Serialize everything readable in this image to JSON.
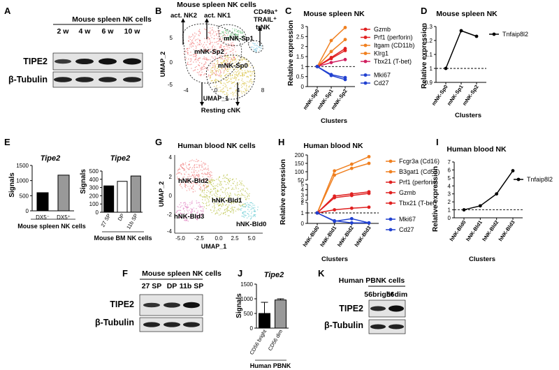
{
  "panels": {
    "A": {
      "letter": "A",
      "title": "Mouse spleen NK cells",
      "lanes": [
        "2 w",
        "4 w",
        "6 w",
        "10 w"
      ],
      "rows": [
        "TIPE2",
        "β-Tubulin"
      ]
    },
    "B": {
      "letter": "B",
      "title": "Mouse spleen NK cells",
      "xlabel": "UMAP_1",
      "ylabel": "UMAP_2",
      "xticks": [
        "-4",
        "0",
        "4",
        "8"
      ],
      "yticks": [
        "5",
        "0",
        "-5"
      ],
      "clusters": [
        "mNK-Sp0",
        "mNK-Sp1",
        "mNK-Sp2"
      ],
      "annotations": {
        "act2": "act. NK2",
        "act1": "act. NK1",
        "cd49a": "CD49a⁺",
        "trail": "TRAIL⁺",
        "trnk": "trNK",
        "resting": "Resting cNK"
      }
    },
    "E": {
      "letter": "E",
      "left_title": "Tipe2",
      "right_title": "Tipe2",
      "ylabel": "Signals",
      "left_caption": "Mouse spleen NK cells",
      "right_caption": "Mouse BM NK cells"
    },
    "F": {
      "letter": "F",
      "title": "Mouse spleen NK cells",
      "lanes": [
        "27 SP",
        "DP",
        "11b SP"
      ],
      "rows": [
        "TIPE2",
        "β-Tubulin"
      ]
    },
    "G": {
      "letter": "G",
      "title": "Human blood NK cells",
      "xlabel": "UMAP_1",
      "ylabel": "UMAP_2",
      "xticks": [
        "-5.0",
        "-2.5",
        "0.0",
        "2.5",
        "5.0"
      ],
      "yticks": [
        "4",
        "2",
        "0",
        "-2",
        "-4"
      ],
      "clusters": [
        "hNK-Bld2",
        "hNK-Bld1",
        "hNK-Bld3",
        "hNK-Bld0"
      ]
    },
    "J": {
      "letter": "J",
      "title": "Tipe2",
      "ylabel": "Signals",
      "caption": "Human PBNK"
    },
    "K": {
      "letter": "K",
      "title": "Human PBNK cells",
      "lanes": [
        "56bright",
        "56dim"
      ],
      "rows": [
        "TIPE2",
        "β-Tubulin"
      ]
    }
  },
  "chart_data": [
    {
      "id": "C",
      "letter": "C",
      "type": "line",
      "title": "Mouse spleen NK",
      "xlabel": "Clusters",
      "ylabel": "Relative expression",
      "categories": [
        "mNK-Sp0",
        "mNK-Sp1",
        "mNK-Sp2"
      ],
      "ylim": [
        0,
        3
      ],
      "yticks": [
        0,
        0.5,
        1,
        1.5,
        2,
        2.5,
        3
      ],
      "ref_line": 1,
      "series": [
        {
          "name": "Gzmb",
          "color": "#e02020",
          "values": [
            1,
            1.45,
            1.9
          ]
        },
        {
          "name": "Prf1 (perforin)",
          "color": "#e02020",
          "values": [
            1,
            1.4,
            1.8
          ]
        },
        {
          "name": "Itgam (CD11b)",
          "color": "#f08020",
          "values": [
            1,
            2.3,
            2.95
          ]
        },
        {
          "name": "Klrg1",
          "color": "#f08020",
          "values": [
            1,
            1.75,
            2.35
          ]
        },
        {
          "name": "Tbx21 (T-bet)",
          "color": "#d02060",
          "values": [
            1,
            1.2,
            1.35
          ]
        },
        {
          "name": "Mki67",
          "color": "#2040d0",
          "values": [
            1,
            0.6,
            0.45
          ]
        },
        {
          "name": "Cd27",
          "color": "#2040d0",
          "values": [
            1,
            0.55,
            0.35
          ]
        }
      ]
    },
    {
      "id": "D",
      "letter": "D",
      "type": "line",
      "title": "Mouse spleen NK",
      "xlabel": "Clusters",
      "ylabel": "Relative expression",
      "categories": [
        "mNK-Sp0",
        "mNK-Sp1",
        "mNK-Sp2"
      ],
      "ylim": [
        0.9,
        1.3
      ],
      "yticks": [
        0.9,
        1.0,
        1.1,
        1.2,
        1.3
      ],
      "ref_line": 1.0,
      "series": [
        {
          "name": "Tnfaip8l2",
          "color": "#000000",
          "values": [
            1.0,
            1.27,
            1.23
          ]
        }
      ]
    },
    {
      "id": "E1",
      "type": "bar",
      "categories": [
        "DX5⁻",
        "DX5⁺"
      ],
      "values": [
        600,
        1180
      ],
      "colors": [
        "#000000",
        "#999999"
      ],
      "ylim": [
        0,
        1500
      ],
      "yticks": [
        0,
        500,
        1000,
        1500
      ]
    },
    {
      "id": "E2",
      "type": "bar",
      "categories": [
        "27 SP",
        "DP",
        "11b SP"
      ],
      "values": [
        320,
        375,
        440
      ],
      "colors": [
        "#000000",
        "#ffffff",
        "#999999"
      ],
      "ylim": [
        0,
        500
      ],
      "yticks": [
        0,
        100,
        200,
        300,
        400,
        500
      ]
    },
    {
      "id": "H",
      "letter": "H",
      "type": "line",
      "title": "Human blood NK",
      "xlabel": "Clusters",
      "ylabel": "Relative expression",
      "categories": [
        "hNK-Bld0",
        "hNK-Bld1",
        "hNK-Bld2",
        "hNK-Bld3"
      ],
      "segments": [
        {
          "range": [
            50,
            200
          ],
          "ticks": [
            50,
            100,
            150,
            200
          ]
        },
        {
          "range": [
            2,
            5
          ],
          "ticks": [
            2,
            3,
            4,
            5
          ]
        },
        {
          "range": [
            0,
            2
          ],
          "ticks": [
            0,
            1,
            2
          ]
        }
      ],
      "ref_line": 1,
      "series": [
        {
          "name": "Fcgr3a (Cd16)",
          "color": "#f08020",
          "values": [
            1,
            105,
            145,
            190
          ]
        },
        {
          "name": "B3gat1 (Cd57)",
          "color": "#f08020",
          "values": [
            1,
            80,
            120,
            150
          ]
        },
        {
          "name": "Prf1 (perforin)",
          "color": "#e02020",
          "values": [
            1,
            2.8,
            3.2,
            3.6
          ]
        },
        {
          "name": "Gzmb",
          "color": "#e02020",
          "values": [
            1,
            2.5,
            2.9,
            3.3
          ]
        },
        {
          "name": "Tbx21 (T-bet)",
          "color": "#e02020",
          "values": [
            1,
            1.3,
            1.45,
            1.55
          ]
        },
        {
          "name": "Mki67",
          "color": "#2040d0",
          "values": [
            1,
            0.25,
            0.05,
            0.05
          ]
        },
        {
          "name": "Cd27",
          "color": "#2040d0",
          "values": [
            1,
            0.2,
            0.45,
            0.05
          ]
        }
      ]
    },
    {
      "id": "I",
      "letter": "I",
      "type": "line",
      "title": "Human blood NK",
      "xlabel": "Clusters",
      "ylabel": "Relative expression",
      "categories": [
        "hNK-Bld0",
        "hNK-Bld1",
        "hNK-Bld2",
        "hNK-Bld3"
      ],
      "ylim": [
        0,
        7
      ],
      "yticks": [
        0,
        1,
        2,
        3,
        4,
        5,
        6,
        7
      ],
      "ref_line": 1,
      "series": [
        {
          "name": "Tnfaip8l2",
          "color": "#000000",
          "values": [
            1,
            1.5,
            3.0,
            5.9
          ]
        }
      ]
    },
    {
      "id": "J",
      "type": "bar",
      "categories": [
        "CD56 bright",
        "CD56 dim"
      ],
      "values": [
        500,
        960
      ],
      "errors": [
        380,
        40
      ],
      "colors": [
        "#000000",
        "#999999"
      ],
      "ylim": [
        0,
        1500
      ],
      "yticks": [
        0,
        500,
        1000,
        1500
      ]
    }
  ]
}
